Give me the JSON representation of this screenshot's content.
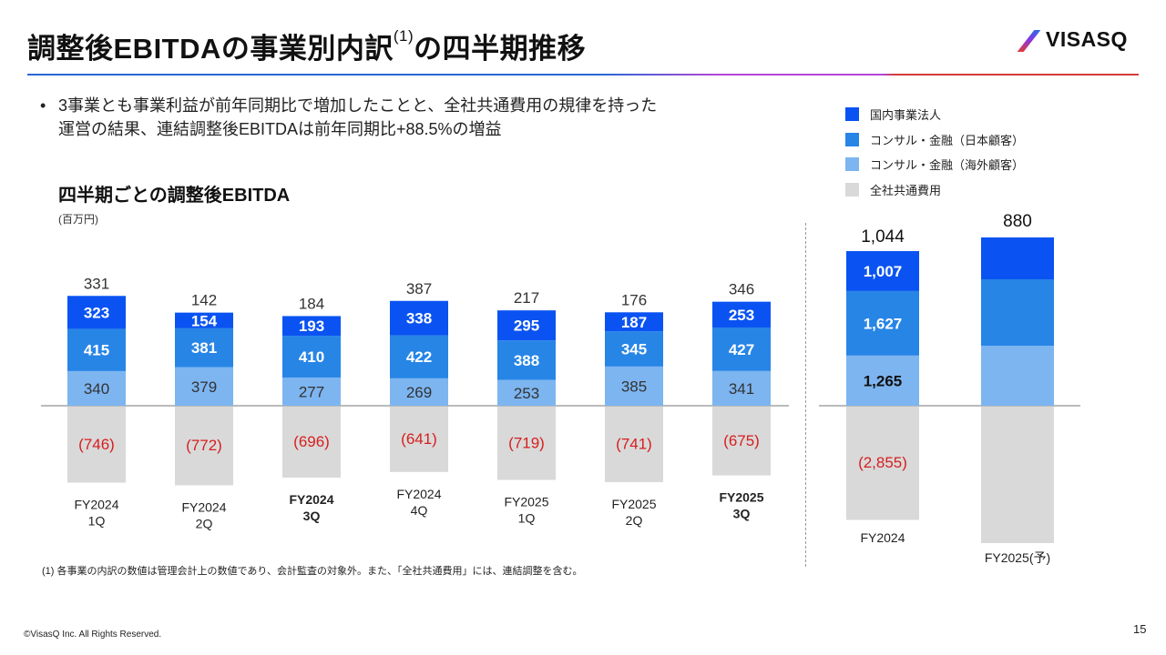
{
  "header": {
    "title": "調整後EBITDAの事業別内訳",
    "title_superscript": "(1)",
    "title_suffix": "の四半期推移",
    "logo_text": "VISASQ"
  },
  "bullet": {
    "line1": "3事業とも事業利益が前年同期比で増加したことと、全社共通費用の規律を持った",
    "line2": "運営の結果、連結調整後EBITDAは前年同期比+88.5%の増益"
  },
  "chart_section": {
    "subtitle": "四半期ごとの調整後EBITDA",
    "unit": "(百万円)"
  },
  "footnote": "(1) 各事業の内訳の数値は管理会計上の数値であり、会計監査の対象外。また、「全社共通費用」には、連結調整を含む。",
  "copyright": "©VisasQ Inc. All Rights Reserved.",
  "page_number": "15",
  "colors": {
    "domestic": "#0a53f2",
    "consult_jp": "#2785e6",
    "consult_overseas": "#7db5f0",
    "common_cost": "#d9d9d9",
    "negative_label": "#d71e1e"
  },
  "chart_data": [
    {
      "type": "bar",
      "stacked": true,
      "title": "四半期ごとの調整後EBITDA",
      "ylabel": "(百万円)",
      "categories": [
        {
          "line1": "FY2024",
          "line2": "1Q",
          "bold": false
        },
        {
          "line1": "FY2024",
          "line2": "2Q",
          "bold": false
        },
        {
          "line1": "FY2024",
          "line2": "3Q",
          "bold": true
        },
        {
          "line1": "FY2024",
          "line2": "4Q",
          "bold": false
        },
        {
          "line1": "FY2025",
          "line2": "1Q",
          "bold": false
        },
        {
          "line1": "FY2025",
          "line2": "2Q",
          "bold": false
        },
        {
          "line1": "FY2025",
          "line2": "3Q",
          "bold": true
        }
      ],
      "series": [
        {
          "name": "コンサル・金融（海外顧客）",
          "color_key": "consult_overseas",
          "values": [
            340,
            379,
            277,
            269,
            253,
            385,
            341
          ]
        },
        {
          "name": "コンサル・金融（日本顧客）",
          "color_key": "consult_jp",
          "values": [
            415,
            381,
            410,
            422,
            388,
            345,
            427
          ]
        },
        {
          "name": "国内事業法人",
          "color_key": "domestic",
          "values": [
            323,
            154,
            193,
            338,
            295,
            187,
            253
          ]
        },
        {
          "name": "全社共通費用",
          "color_key": "common_cost",
          "values": [
            -746,
            -772,
            -696,
            -641,
            -719,
            -741,
            -675
          ]
        }
      ],
      "totals": [
        331,
        142,
        184,
        387,
        217,
        176,
        346
      ],
      "value_labels": {
        "negative_format": "parentheses"
      },
      "ylim": [
        -800,
        1200
      ],
      "grid": false,
      "legend": "top-right"
    },
    {
      "type": "bar",
      "stacked": true,
      "categories": [
        {
          "line1": "FY2024",
          "line2": ""
        },
        {
          "line1": "FY2025(予)",
          "line2": ""
        }
      ],
      "series": [
        {
          "name": "コンサル・金融（海外顧客）",
          "color_key": "consult_overseas",
          "values": [
            1265,
            null
          ],
          "labels": [
            "1,265",
            ""
          ]
        },
        {
          "name": "コンサル・金融（日本顧客）",
          "color_key": "consult_jp",
          "values": [
            1627,
            null
          ],
          "labels": [
            "1,627",
            ""
          ]
        },
        {
          "name": "国内事業法人",
          "color_key": "domestic",
          "values": [
            1007,
            null
          ],
          "labels": [
            "1,007",
            ""
          ]
        },
        {
          "name": "全社共通費用",
          "color_key": "common_cost",
          "values": [
            -2855,
            null
          ],
          "labels": [
            "(2,855)",
            ""
          ]
        }
      ],
      "totals": [
        "1,044",
        "880"
      ],
      "note": "FY2025 forecast segment values not labeled",
      "legend": "top-right"
    }
  ],
  "legend": [
    {
      "label": "国内事業法人",
      "color_key": "domestic"
    },
    {
      "label": "コンサル・金融（日本顧客）",
      "color_key": "consult_jp"
    },
    {
      "label": "コンサル・金融（海外顧客）",
      "color_key": "consult_overseas"
    },
    {
      "label": "全社共通費用",
      "color_key": "common_cost"
    }
  ]
}
